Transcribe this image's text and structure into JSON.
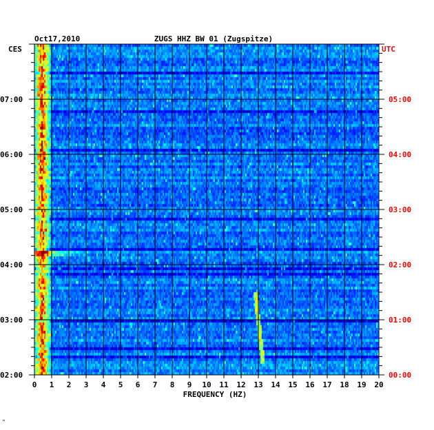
{
  "chart_data": {
    "type": "heatmap",
    "date": "Oct17,2010",
    "title": "ZUGS HHZ BW 01 (Zugspitze)",
    "xlabel": "FREQUENCY (HZ)",
    "left_zone": "CES",
    "right_zone": "UTC",
    "xlim": [
      0,
      20
    ],
    "x_ticks": [
      "0",
      "1",
      "2",
      "3",
      "4",
      "5",
      "6",
      "7",
      "8",
      "9",
      "10",
      "11",
      "12",
      "13",
      "14",
      "15",
      "16",
      "17",
      "18",
      "19",
      "20"
    ],
    "left_time_ticks": [
      "07:00",
      "06:00",
      "05:00",
      "04:00",
      "03:00",
      "02:00"
    ],
    "right_time_ticks": [
      "05:00",
      "04:00",
      "03:00",
      "02:00",
      "01:00",
      "00:00"
    ],
    "time_range_utc_hours": [
      0,
      6
    ],
    "colors": {
      "background_low": "#1010c8",
      "grid": "#000000",
      "right_labels": "#ff0000",
      "left_labels": "#000000"
    },
    "features": [
      {
        "name": "microseism band",
        "freq_range_hz": [
          0.1,
          1.0
        ],
        "intensity": "high"
      },
      {
        "name": "tremor line",
        "freq_hz": 13.0,
        "time_utc_hours": [
          0.2,
          1.5
        ],
        "intensity": "medium"
      },
      {
        "name": "harmonic burst",
        "freq_range_hz": [
          0.3,
          3.0
        ],
        "time_utc_hours": 2.2,
        "intensity": "medium"
      }
    ]
  },
  "footer_mark": "\""
}
